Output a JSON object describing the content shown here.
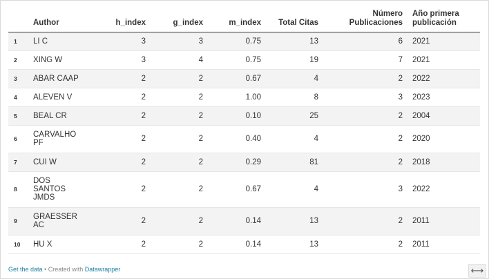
{
  "table": {
    "columns": {
      "index": "",
      "author": "Author",
      "h_index": "h_index",
      "g_index": "g_index",
      "m_index": "m_index",
      "total_citas": "Total Citas",
      "numero_publicaciones": "Número Publicaciones",
      "ano_primera_publicacion": "Año primera publicación"
    },
    "rows": [
      {
        "n": "1",
        "author": "LI C",
        "h": "3",
        "g": "3",
        "m": "0.75",
        "citas": "13",
        "pubs": "6",
        "year": "2021"
      },
      {
        "n": "2",
        "author": "XING W",
        "h": "3",
        "g": "4",
        "m": "0.75",
        "citas": "19",
        "pubs": "7",
        "year": "2021"
      },
      {
        "n": "3",
        "author": "ABAR CAAP",
        "h": "2",
        "g": "2",
        "m": "0.67",
        "citas": "4",
        "pubs": "2",
        "year": "2022"
      },
      {
        "n": "4",
        "author": "ALEVEN V",
        "h": "2",
        "g": "2",
        "m": "1.00",
        "citas": "8",
        "pubs": "3",
        "year": "2023"
      },
      {
        "n": "5",
        "author": "BEAL CR",
        "h": "2",
        "g": "2",
        "m": "0.10",
        "citas": "25",
        "pubs": "2",
        "year": "2004"
      },
      {
        "n": "6",
        "author": "CARVALHO PF",
        "h": "2",
        "g": "2",
        "m": "0.40",
        "citas": "4",
        "pubs": "2",
        "year": "2020"
      },
      {
        "n": "7",
        "author": "CUI W",
        "h": "2",
        "g": "2",
        "m": "0.29",
        "citas": "81",
        "pubs": "2",
        "year": "2018"
      },
      {
        "n": "8",
        "author": "DOS SANTOS JMDS",
        "h": "2",
        "g": "2",
        "m": "0.67",
        "citas": "4",
        "pubs": "3",
        "year": "2022"
      },
      {
        "n": "9",
        "author": "GRAESSER AC",
        "h": "2",
        "g": "2",
        "m": "0.14",
        "citas": "13",
        "pubs": "2",
        "year": "2011"
      },
      {
        "n": "10",
        "author": "HU X",
        "h": "2",
        "g": "2",
        "m": "0.14",
        "citas": "13",
        "pubs": "2",
        "year": "2011"
      }
    ]
  },
  "footer": {
    "get_data": "Get the data",
    "separator": " • Created with ",
    "datawrapper": "Datawrapper"
  },
  "expand": {
    "icon": "expand-arrows-icon",
    "glyph": "⟷"
  }
}
